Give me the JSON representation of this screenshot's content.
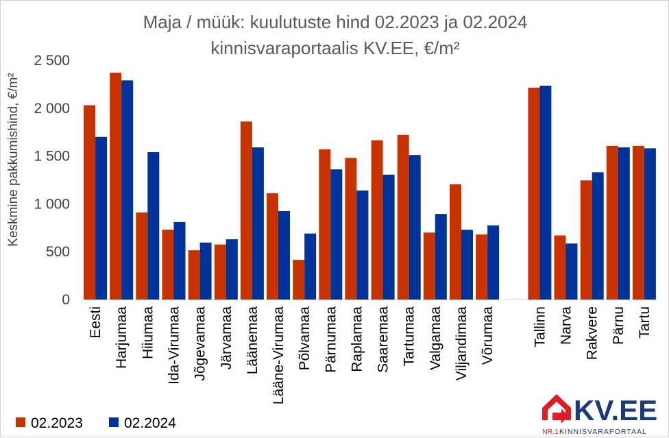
{
  "chart_data": {
    "type": "bar",
    "title": "Maja / müük: kuulutuste hind 02.2023 ja 02.2024",
    "subtitle": "kinnisvaraportaalis KV.EE, €/m²",
    "ylabel": "Keskmine pakkumishind, €/m²",
    "ylim": [
      0,
      2500
    ],
    "yticks": [
      0,
      500,
      1000,
      1500,
      2000,
      2500
    ],
    "ytick_labels": [
      "0",
      "500",
      "1 000",
      "1 500",
      "2 000",
      "2 500"
    ],
    "grid": false,
    "legend_position": "bottom-left",
    "categories": [
      "Eesti",
      "Harjumaa",
      "Hiiumaa",
      "Ida-Virumaa",
      "Jõgevamaa",
      "Järvamaa",
      "Läänemaa",
      "Lääne-Virumaa",
      "Põlvamaa",
      "Pärnumaa",
      "Raplamaa",
      "Saaremaa",
      "Tartumaa",
      "Valgamaa",
      "Viljandimaa",
      "Võrumaa",
      "",
      "Tallinn",
      "Narva",
      "Rakvere",
      "Pärnu",
      "Tartu"
    ],
    "series": [
      {
        "name": "02.2023",
        "color": "#C63300",
        "values": [
          2030,
          2370,
          910,
          730,
          515,
          575,
          1860,
          1110,
          415,
          1570,
          1480,
          1665,
          1720,
          700,
          1205,
          680,
          null,
          2215,
          670,
          1245,
          1605,
          1605
        ]
      },
      {
        "name": "02.2024",
        "color": "#003399",
        "values": [
          1700,
          2290,
          1540,
          810,
          595,
          630,
          1590,
          925,
          690,
          1360,
          1140,
          1305,
          1510,
          895,
          730,
          775,
          null,
          2235,
          585,
          1330,
          1590,
          1580
        ]
      }
    ]
  },
  "logo": {
    "name": "KV.EE",
    "tagline_prefix": "NR.1",
    "tagline": "KINNISVARAPORTAAL",
    "icon": "house-arrow-icon",
    "color": "#E01B22",
    "text_color": "#1A3A7A"
  }
}
